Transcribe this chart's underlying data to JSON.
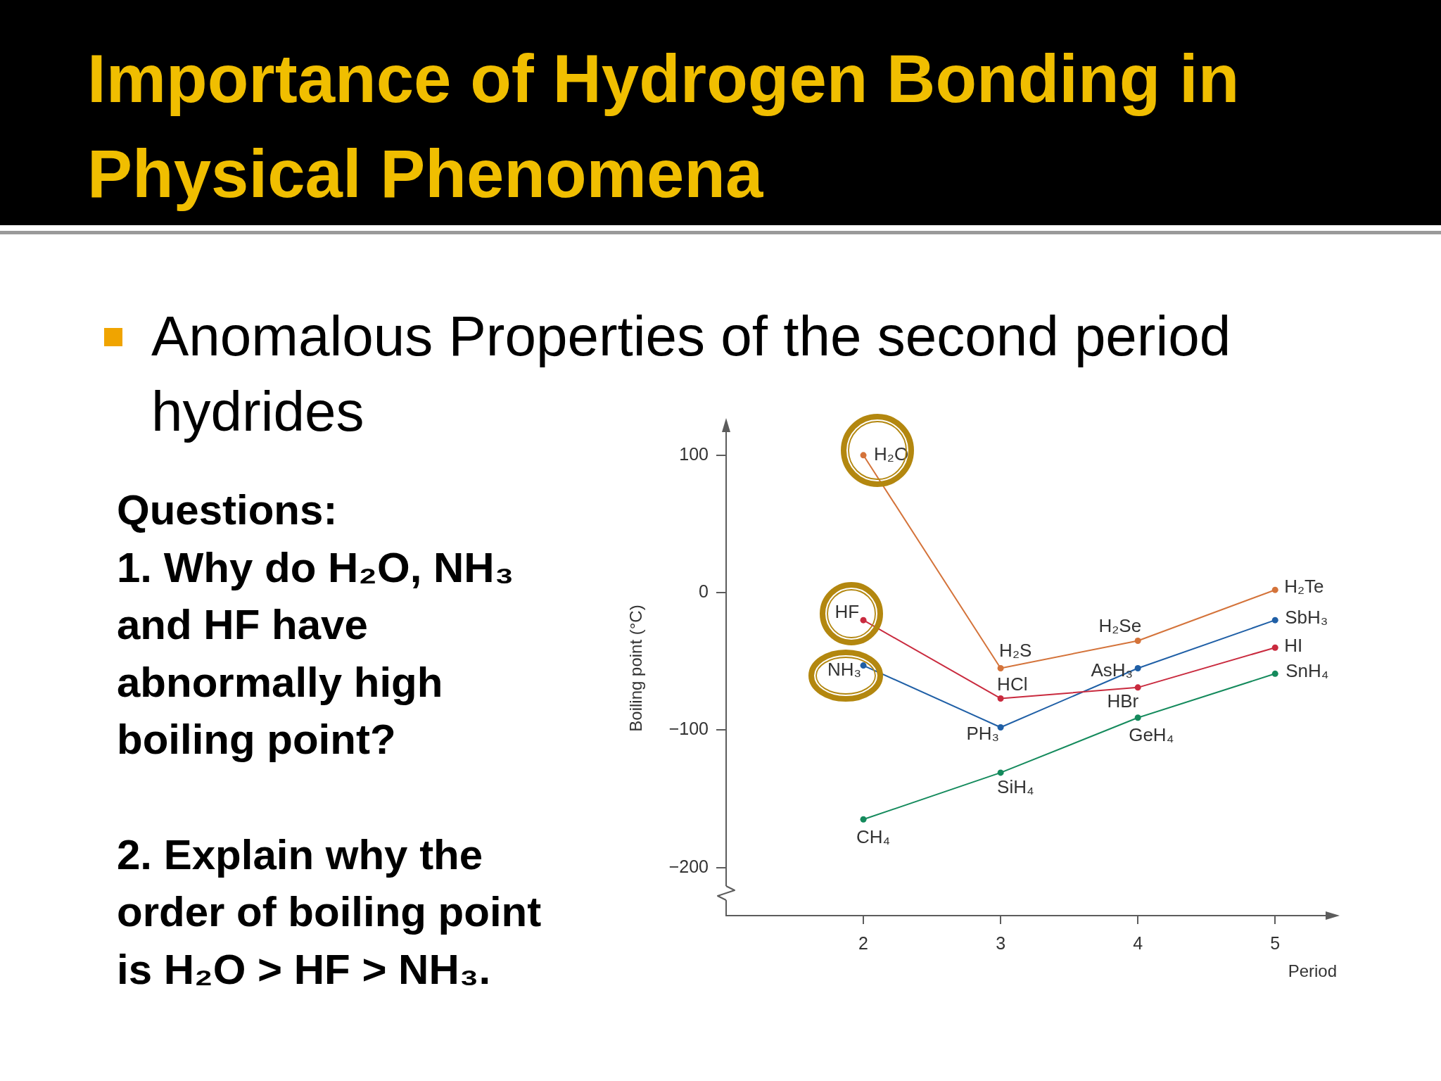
{
  "chart_data": {
    "type": "line",
    "title": "Importance of Hydrogen Bonding in Physical Phenomena",
    "subtitle": "Anomalous Properties of the second period hydrides",
    "xlabel": "Period",
    "ylabel": "Boiling point (°C)",
    "x": [
      2,
      3,
      4,
      5
    ],
    "series": [
      {
        "color": "#d4733a",
        "values": [
          100,
          -55,
          -35,
          2
        ]
      },
      {
        "color": "#c92a3e",
        "values": [
          -20,
          -77,
          -69,
          -40
        ]
      },
      {
        "color": "#1f5fa6",
        "values": [
          -53,
          -98,
          -55,
          -20
        ]
      },
      {
        "color": "#148a5c",
        "values": [
          -165,
          -131,
          -91,
          -59
        ]
      }
    ],
    "xlim": [
      1,
      5.45
    ],
    "ylim": [
      -235,
      125
    ],
    "xticks": [
      2,
      3,
      4,
      5
    ],
    "yticks": [
      {
        "value": -200,
        "label": "−200"
      },
      {
        "value": -100,
        "label": "−100"
      },
      0,
      100
    ],
    "grid": false,
    "legend": false,
    "marker": "circle",
    "line_style": "solid",
    "annotations": [
      {
        "text": "H₂O",
        "x": 2,
        "y": 100
      },
      {
        "text": "HF",
        "x": 2,
        "y": -20
      },
      {
        "text": "NH₃",
        "x": 2,
        "y": -53
      },
      {
        "text": "H₂S",
        "x": 3,
        "y": -55
      },
      {
        "text": "HCl",
        "x": 3,
        "y": -77
      },
      {
        "text": "PH₃",
        "x": 3,
        "y": -98
      },
      {
        "text": "CH₄",
        "x": 2,
        "y": -165
      },
      {
        "text": "SiH₄",
        "x": 3,
        "y": -131
      },
      {
        "text": "H₂Se",
        "x": 4,
        "y": -35
      },
      {
        "text": "AsH₃",
        "x": 4,
        "y": -55
      },
      {
        "text": "HBr",
        "x": 4,
        "y": -69
      },
      {
        "text": "GeH₄",
        "x": 4,
        "y": -91
      },
      {
        "text": "H₂Te",
        "x": 5,
        "y": 2
      },
      {
        "text": "SbH₃",
        "x": 5,
        "y": -20
      },
      {
        "text": "HI",
        "x": 5,
        "y": -40
      },
      {
        "text": "SnH₄",
        "x": 5,
        "y": -59
      },
      "Questions:",
      "1. Why do H₂O, NH₃ and HF have abnormally high boiling point?",
      "2. Explain why the order of boiling point is H₂O > HF > NH₃."
    ]
  }
}
